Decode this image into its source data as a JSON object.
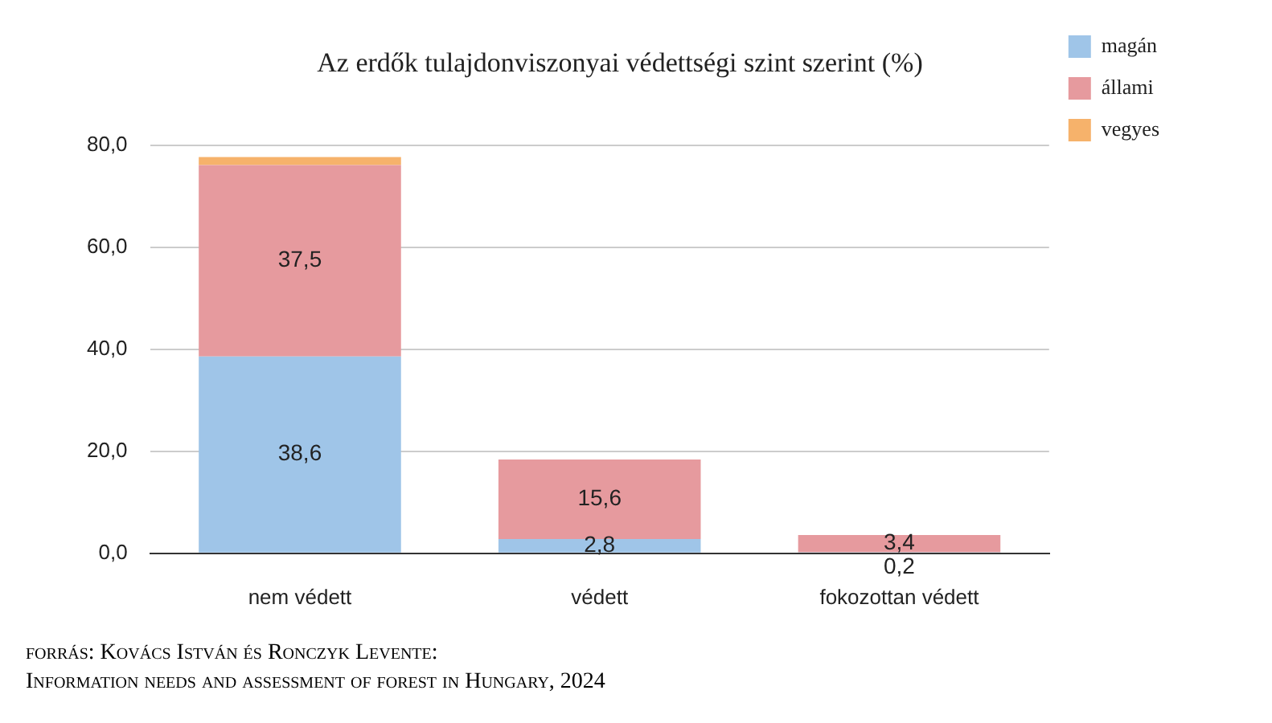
{
  "chart_data": {
    "type": "bar",
    "title": "Az erdők tulajdonviszonyai védettségi szint szerint (%)",
    "categories": [
      "nem védett",
      "védett",
      "fokozottan védett"
    ],
    "stacked": true,
    "series": [
      {
        "name": "magán",
        "color": "#9fc5e8",
        "values": [
          38.6,
          2.8,
          0.2
        ],
        "value_labels": [
          "38,6",
          "2,8",
          "0,2"
        ]
      },
      {
        "name": "állami",
        "color": "#e69a9e",
        "values": [
          37.5,
          15.6,
          3.4
        ],
        "value_labels": [
          "37,5",
          "15,6",
          "3,4"
        ]
      },
      {
        "name": "vegyes",
        "color": "#f6b26b",
        "values": [
          1.6,
          0,
          0
        ]
      }
    ],
    "ylim": [
      0,
      80
    ],
    "yticks": [
      {
        "value": 0,
        "label": "0,0"
      },
      {
        "value": 20,
        "label": "20,0"
      },
      {
        "value": 40,
        "label": "40,0"
      },
      {
        "value": 60,
        "label": "60,0"
      },
      {
        "value": 80,
        "label": "80,0"
      }
    ],
    "grid": "y",
    "legend": "top right",
    "annotations": [
      "forrás: Kovács István és Ronczyk Levente:",
      "Information needs and assessment of forest in Hungary, 2024"
    ]
  }
}
